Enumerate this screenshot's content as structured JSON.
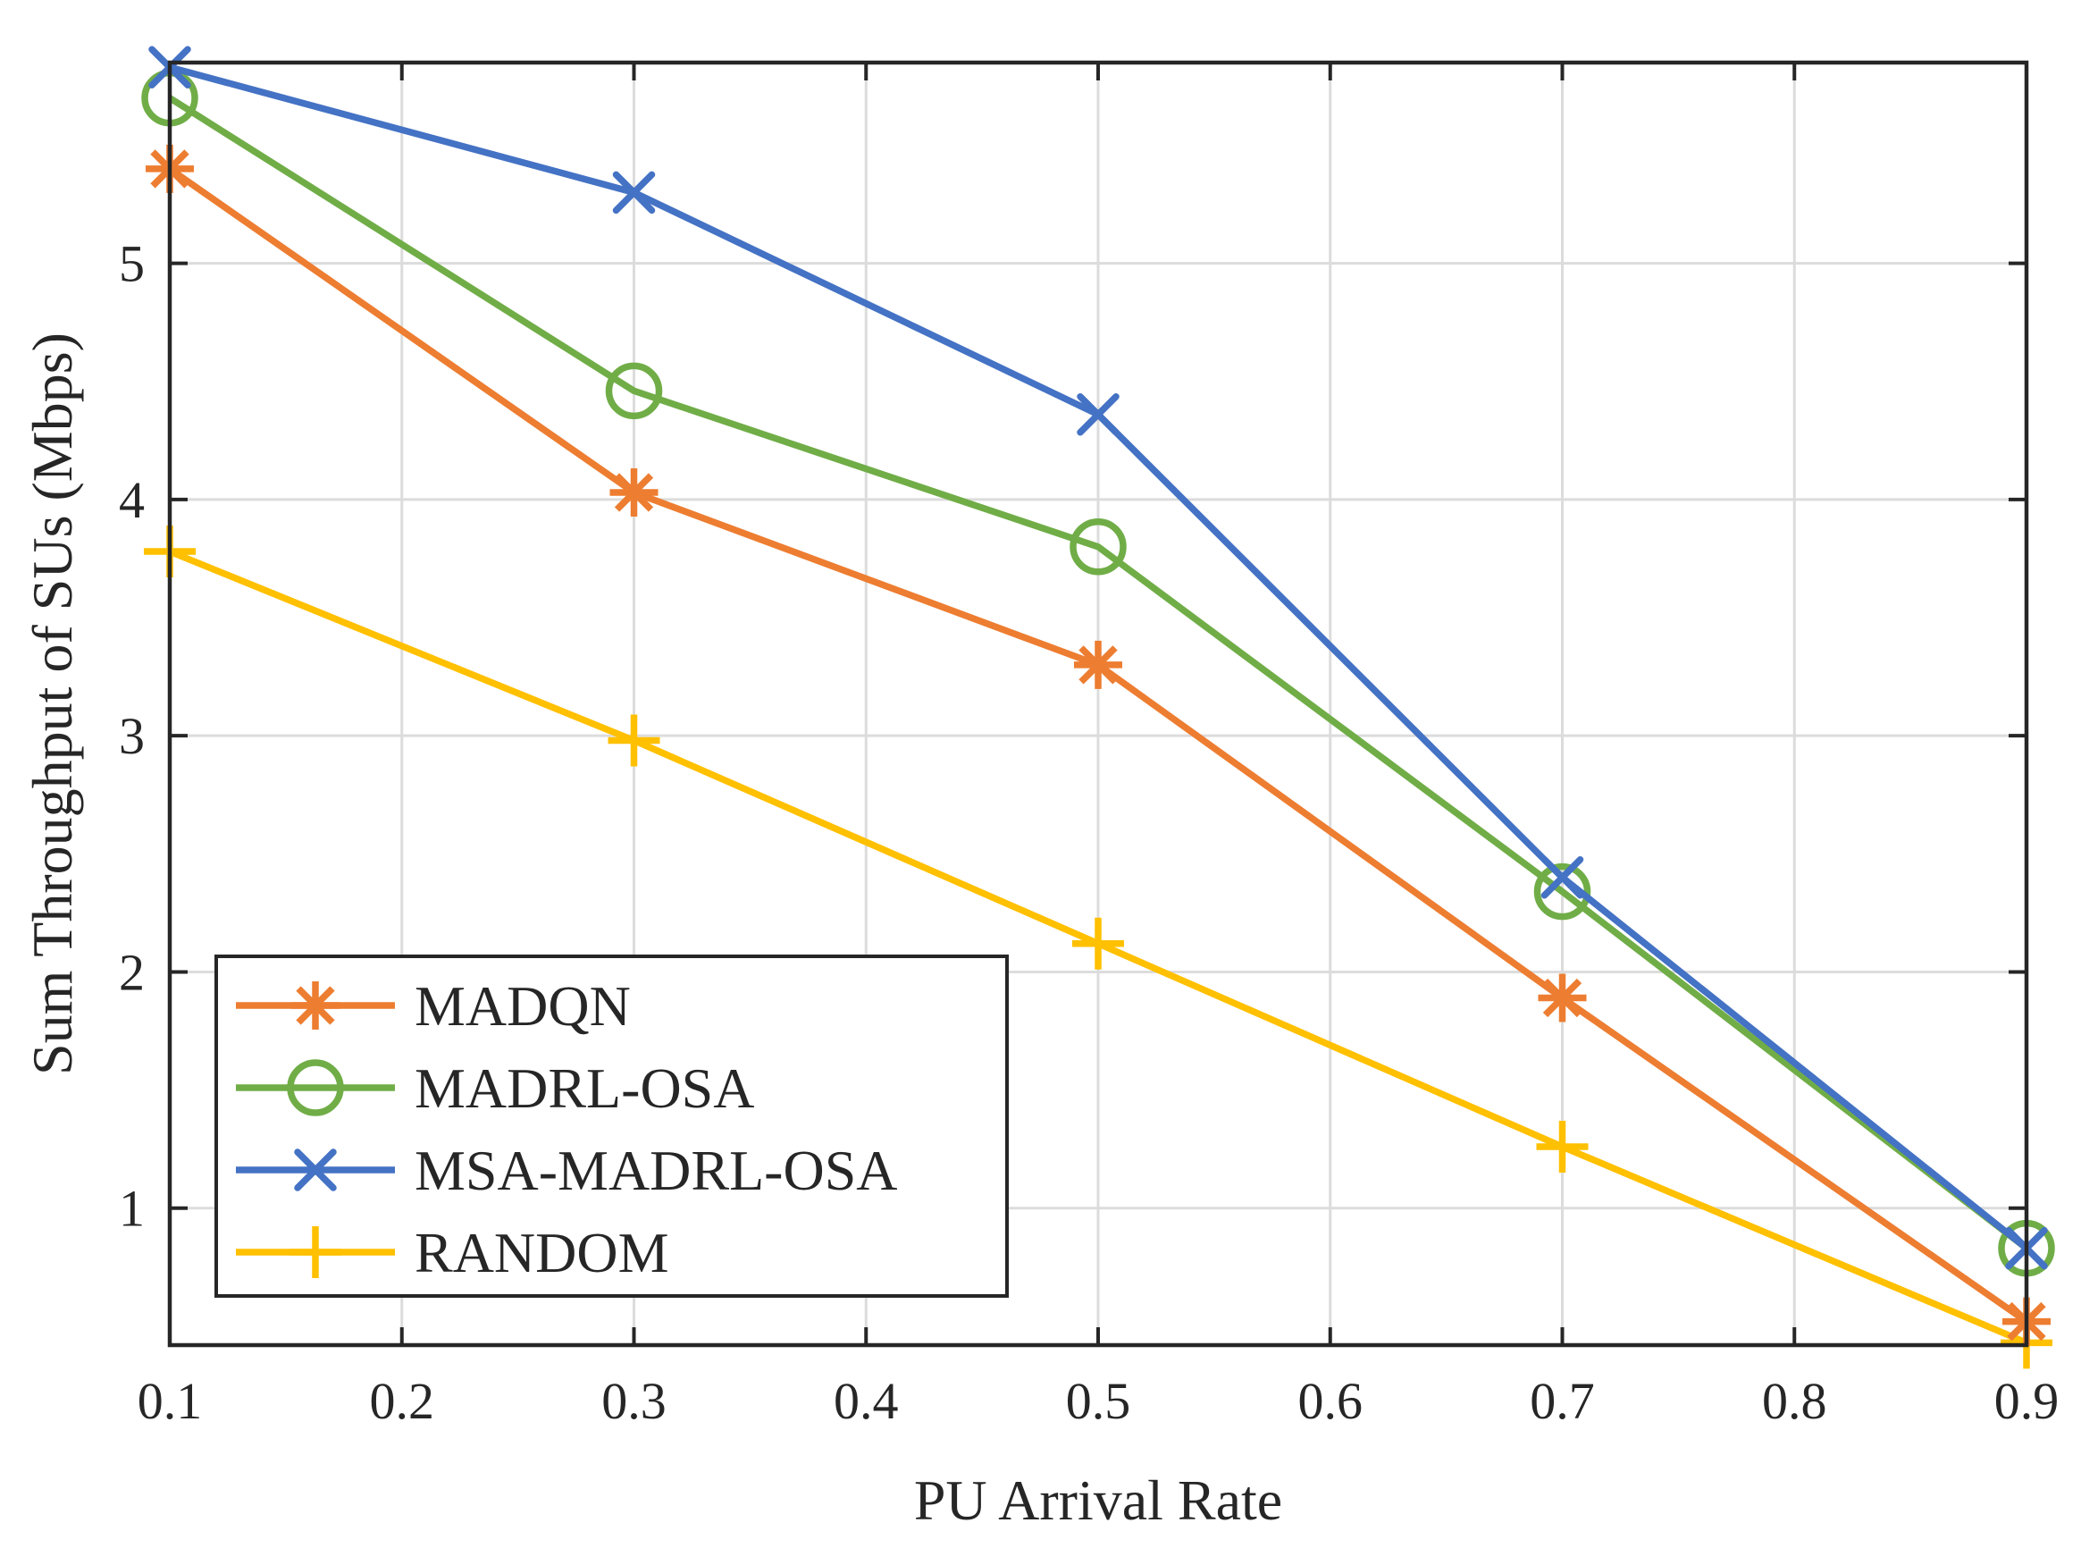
{
  "chart_data": {
    "type": "line",
    "title": "",
    "xlabel": "PU Arrival Rate",
    "ylabel": "Sum Throughput of SUs (Mbps)",
    "xlim": [
      0.1,
      0.9
    ],
    "ylim": [
      0.42,
      5.85
    ],
    "xticks": [
      "0.1",
      "0.2",
      "0.3",
      "0.4",
      "0.5",
      "0.6",
      "0.7",
      "0.8",
      "0.9"
    ],
    "yticks": [
      "1",
      "2",
      "3",
      "4",
      "5"
    ],
    "grid": true,
    "legend_position": "bottom-left",
    "x": [
      0.1,
      0.3,
      0.5,
      0.7,
      0.9
    ],
    "series": [
      {
        "name": "MADQN",
        "marker": "asterisk",
        "color": "#ED7D31",
        "values": [
          5.4,
          4.03,
          3.3,
          1.89,
          0.52
        ]
      },
      {
        "name": "MADRL-OSA",
        "marker": "circle",
        "color": "#70AD47",
        "values": [
          5.7,
          4.46,
          3.8,
          2.34,
          0.83
        ]
      },
      {
        "name": "MSA-MADRL-OSA",
        "marker": "x",
        "color": "#4472C4",
        "values": [
          5.83,
          5.3,
          4.36,
          2.4,
          0.83
        ]
      },
      {
        "name": "RANDOM",
        "marker": "plus",
        "color": "#FFC000",
        "values": [
          3.78,
          2.98,
          2.12,
          1.26,
          0.43
        ]
      }
    ]
  }
}
